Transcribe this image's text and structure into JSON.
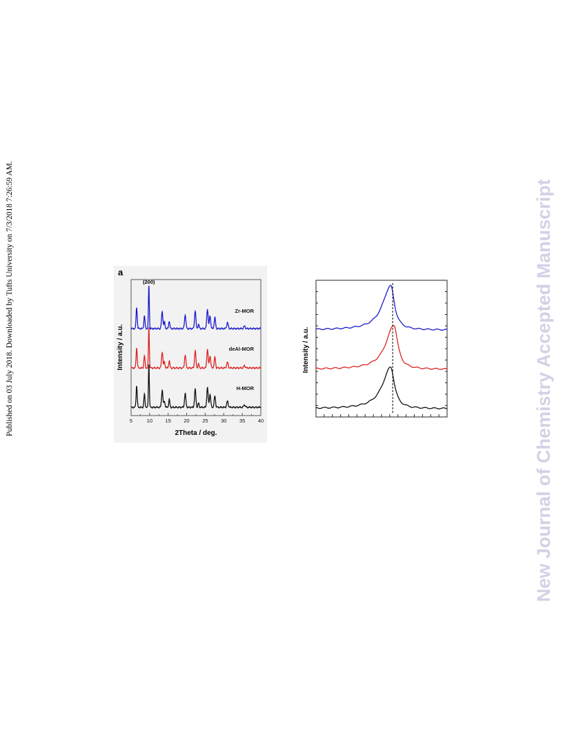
{
  "side_note": "Published on 03 July 2018. Downloaded by Tufts University on 7/3/2018 7:26:59 AM.",
  "watermark": "New Journal of Chemistry Accepted Manuscript",
  "colors": {
    "zr": "#1a1acc",
    "deal": "#dd2222",
    "h": "#111111",
    "watermark": "#d2d2e6"
  },
  "chart_data": [
    {
      "type": "line",
      "panel_label": "a",
      "xlabel": "2Theta / deg.",
      "ylabel": "Intensity / a.u.",
      "xlim": [
        5,
        40
      ],
      "x_ticks": [
        5,
        10,
        15,
        20,
        25,
        30,
        35,
        40
      ],
      "annotations": [
        {
          "text": "(200)",
          "x": 9.8
        }
      ],
      "peaks": [
        {
          "x": 6.5,
          "h": 0.5,
          "w": 0.15
        },
        {
          "x": 8.6,
          "h": 0.3,
          "w": 0.15
        },
        {
          "x": 9.8,
          "h": 1.0,
          "w": 0.12
        },
        {
          "x": 13.4,
          "h": 0.4,
          "w": 0.18
        },
        {
          "x": 14.0,
          "h": 0.15,
          "w": 0.15
        },
        {
          "x": 15.3,
          "h": 0.18,
          "w": 0.15
        },
        {
          "x": 19.6,
          "h": 0.32,
          "w": 0.18
        },
        {
          "x": 22.3,
          "h": 0.42,
          "w": 0.18
        },
        {
          "x": 23.2,
          "h": 0.1,
          "w": 0.15
        },
        {
          "x": 25.6,
          "h": 0.46,
          "w": 0.18
        },
        {
          "x": 26.3,
          "h": 0.3,
          "w": 0.18
        },
        {
          "x": 27.6,
          "h": 0.26,
          "w": 0.18
        },
        {
          "x": 31.0,
          "h": 0.14,
          "w": 0.2
        },
        {
          "x": 35.6,
          "h": 0.06,
          "w": 0.2
        }
      ],
      "series": [
        {
          "name": "Zr-MOR",
          "color": "#1a1acc",
          "offset": 2,
          "scale": 1.0
        },
        {
          "name": "deAl-MOR",
          "color": "#dd2222",
          "offset": 1,
          "scale": 0.95
        },
        {
          "name": "H-MOR",
          "color": "#111111",
          "offset": 0,
          "scale": 1.0
        }
      ]
    },
    {
      "type": "line",
      "ylabel": "Intensity / a.u.",
      "xlim": [
        0,
        10
      ],
      "peaks_note": "one peak per trace; dashed guide line through peak maxima",
      "series": [
        {
          "color": "#1a1acc",
          "offset": 2,
          "peak_x": 5.7,
          "height": 0.8
        },
        {
          "color": "#dd2222",
          "offset": 1,
          "peak_x": 5.95,
          "height": 0.8
        },
        {
          "color": "#111111",
          "offset": 0,
          "peak_x": 5.7,
          "height": 0.75
        }
      ],
      "guide_x": 5.85
    }
  ]
}
